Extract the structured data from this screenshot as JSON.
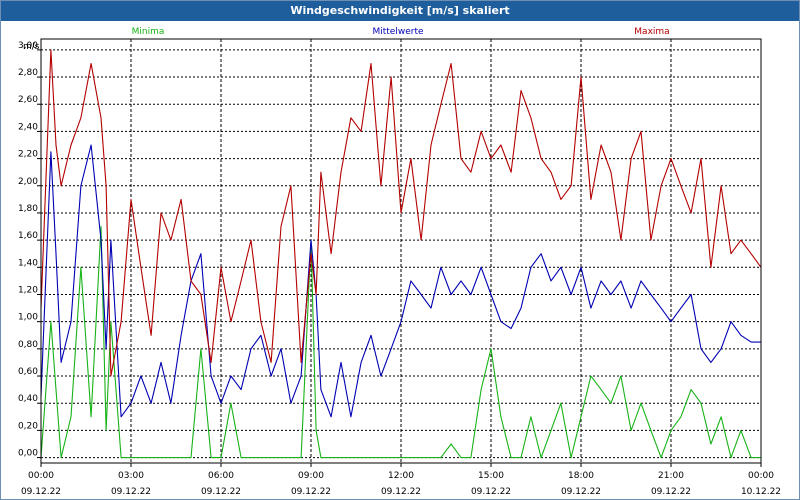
{
  "window": {
    "title": "Windgeschwindigkeit [m/s] skaliert"
  },
  "colors": {
    "titlebar": "#1e5e9c",
    "min": "#17b317",
    "mean": "#0000b4",
    "max": "#b40000"
  },
  "chart_data": {
    "type": "line",
    "title": "Windgeschwindigkeit [m/s] skaliert",
    "ylabel": "m/s",
    "ylim": [
      -0.04,
      3.08
    ],
    "xlim": [
      0,
      24
    ],
    "grid": true,
    "legend": [
      "Minima",
      "Mittelwerte",
      "Maxima"
    ],
    "yticks": [
      "0,00",
      "0,20",
      "0,40",
      "0,60",
      "0,80",
      "1,00",
      "1,20",
      "1,40",
      "1,60",
      "1,80",
      "2,00",
      "2,20",
      "2,40",
      "2,60",
      "2,80",
      "3,00"
    ],
    "xticks": [
      {
        "time": "00:00",
        "date": "09.12.22"
      },
      {
        "time": "03:00",
        "date": "09.12.22"
      },
      {
        "time": "06:00",
        "date": "09.12.22"
      },
      {
        "time": "09:00",
        "date": "09.12.22"
      },
      {
        "time": "12:00",
        "date": "09.12.22"
      },
      {
        "time": "15:00",
        "date": "09.12.22"
      },
      {
        "time": "18:00",
        "date": "09.12.22"
      },
      {
        "time": "21:00",
        "date": "09.12.22"
      },
      {
        "time": "00:00",
        "date": "10.12.22"
      }
    ],
    "x": [
      0,
      0.33,
      0.5,
      0.67,
      1,
      1.33,
      1.67,
      2,
      2.17,
      2.33,
      2.67,
      3,
      3.33,
      3.67,
      4,
      4.33,
      4.67,
      5,
      5.33,
      5.67,
      6,
      6.33,
      6.67,
      7,
      7.33,
      7.67,
      8,
      8.33,
      8.67,
      9,
      9.17,
      9.33,
      9.67,
      10,
      10.33,
      10.67,
      11,
      11.33,
      11.67,
      12,
      12.33,
      12.67,
      13,
      13.33,
      13.67,
      14,
      14.33,
      14.67,
      15,
      15.33,
      15.67,
      16,
      16.33,
      16.67,
      17,
      17.33,
      17.67,
      18,
      18.33,
      18.67,
      19,
      19.33,
      19.67,
      20,
      20.33,
      20.67,
      21,
      21.33,
      21.67,
      22,
      22.33,
      22.67,
      23,
      23.33,
      23.67,
      24
    ],
    "series": [
      {
        "name": "Minima",
        "values": [
          0,
          1.0,
          0.5,
          0,
          0.3,
          1.4,
          0.3,
          1.7,
          0.2,
          1.0,
          0,
          0,
          0,
          0,
          0,
          0,
          0,
          0,
          0.8,
          0,
          0,
          0.4,
          0,
          0,
          0,
          0,
          0,
          0,
          0,
          1.6,
          0.2,
          0,
          0,
          0,
          0,
          0,
          0,
          0,
          0,
          0,
          0,
          0,
          0,
          0,
          0.1,
          0,
          0,
          0.5,
          0.8,
          0.3,
          0,
          0,
          0.3,
          0,
          0.2,
          0.4,
          0,
          0.3,
          0.6,
          0.5,
          0.4,
          0.6,
          0.2,
          0.4,
          0.2,
          0,
          0.2,
          0.3,
          0.5,
          0.4,
          0.1,
          0.3,
          0,
          0.2,
          0,
          0
        ]
      },
      {
        "name": "Mittelwerte",
        "values": [
          0.45,
          2.25,
          1.5,
          0.7,
          1.0,
          2.0,
          2.3,
          1.6,
          0.8,
          1.6,
          0.3,
          0.4,
          0.6,
          0.4,
          0.7,
          0.4,
          0.9,
          1.3,
          1.5,
          0.6,
          0.4,
          0.6,
          0.5,
          0.8,
          0.9,
          0.6,
          0.8,
          0.4,
          0.6,
          1.6,
          1.2,
          0.5,
          0.3,
          0.7,
          0.3,
          0.7,
          0.9,
          0.6,
          0.8,
          1.0,
          1.3,
          1.2,
          1.1,
          1.4,
          1.2,
          1.3,
          1.2,
          1.4,
          1.2,
          1.0,
          0.95,
          1.1,
          1.4,
          1.5,
          1.3,
          1.4,
          1.2,
          1.4,
          1.1,
          1.3,
          1.2,
          1.3,
          1.1,
          1.3,
          1.2,
          1.1,
          1.0,
          1.1,
          1.2,
          0.8,
          0.7,
          0.8,
          1.0,
          0.9,
          0.85,
          0.85
        ]
      },
      {
        "name": "Maxima",
        "values": [
          1.1,
          3.0,
          2.3,
          2.0,
          2.3,
          2.5,
          2.9,
          2.5,
          2.0,
          0.6,
          1.0,
          1.9,
          1.4,
          0.9,
          1.8,
          1.6,
          1.9,
          1.3,
          1.2,
          0.7,
          1.4,
          1.0,
          1.3,
          1.6,
          1.0,
          0.7,
          1.7,
          2.0,
          0.7,
          1.5,
          1.2,
          2.1,
          1.5,
          2.1,
          2.5,
          2.4,
          2.9,
          2.0,
          2.8,
          1.8,
          2.2,
          1.6,
          2.3,
          2.6,
          2.9,
          2.2,
          2.1,
          2.4,
          2.2,
          2.3,
          2.1,
          2.7,
          2.5,
          2.2,
          2.1,
          1.9,
          2.0,
          2.8,
          1.9,
          2.3,
          2.1,
          1.6,
          2.2,
          2.4,
          1.6,
          2.0,
          2.2,
          2.0,
          1.8,
          2.2,
          1.4,
          2.0,
          1.5,
          1.6,
          1.5,
          1.4
        ]
      }
    ]
  }
}
